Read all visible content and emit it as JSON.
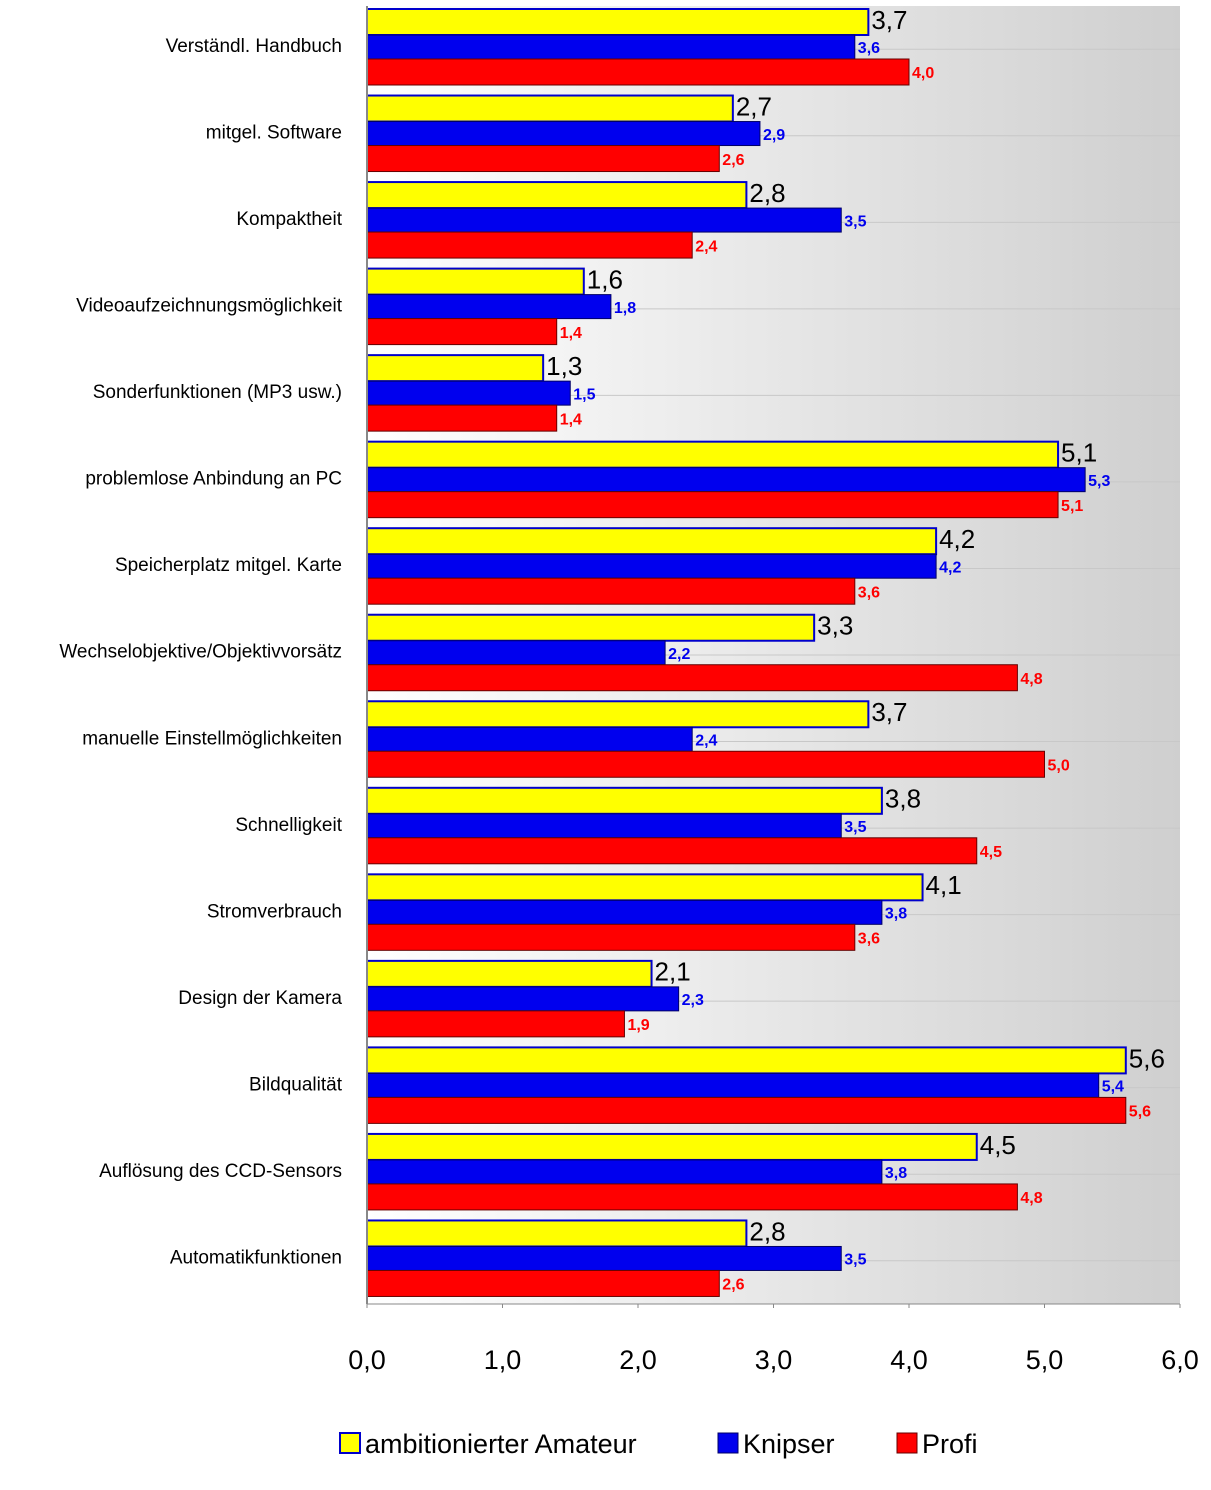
{
  "chart_data": {
    "type": "bar",
    "orientation": "horizontal",
    "categories": [
      "Verständl. Handbuch",
      "mitgel. Software",
      "Kompaktheit",
      "Videoaufzeichnungsmöglichkeit",
      "Sonderfunktionen (MP3 usw.)",
      "problemlose Anbindung an PC",
      "Speicherplatz mitgel. Karte",
      "Wechselobjektive/Objektivvorsätz",
      "manuelle Einstellmöglichkeiten",
      "Schnelligkeit",
      "Stromverbrauch",
      "Design der Kamera",
      "Bildqualität",
      "Auflösung des CCD-Sensors",
      "Automatikfunktionen"
    ],
    "series": [
      {
        "name": "ambitionierter Amateur",
        "color": "#ffff00",
        "values": [
          3.7,
          2.7,
          2.8,
          1.6,
          1.3,
          5.1,
          4.2,
          3.3,
          3.7,
          3.8,
          4.1,
          2.1,
          5.6,
          4.5,
          2.8
        ],
        "value_labels": [
          "3,7",
          "2,7",
          "2,8",
          "1,6",
          "1,3",
          "5,1",
          "4,2",
          "3,3",
          "3,7",
          "3,8",
          "4,1",
          "2,1",
          "5,6",
          "4,5",
          "2,8"
        ]
      },
      {
        "name": "Knipser",
        "color": "#0000ee",
        "values": [
          3.6,
          2.9,
          3.5,
          1.8,
          1.5,
          5.3,
          4.2,
          2.2,
          2.4,
          3.5,
          3.8,
          2.3,
          5.4,
          3.8,
          3.5
        ],
        "value_labels": [
          "3,6",
          "2,9",
          "3,5",
          "1,8",
          "1,5",
          "5,3",
          "4,2",
          "2,2",
          "2,4",
          "3,5",
          "3,8",
          "2,3",
          "5,4",
          "3,8",
          "3,5"
        ]
      },
      {
        "name": "Profi",
        "color": "#ff0000",
        "values": [
          4.0,
          2.6,
          2.4,
          1.4,
          1.4,
          5.1,
          3.6,
          4.8,
          5.0,
          4.5,
          3.6,
          1.9,
          5.6,
          4.8,
          2.6
        ],
        "value_labels": [
          "4,0",
          "2,6",
          "2,4",
          "1,4",
          "1,4",
          "5,1",
          "3,6",
          "4,8",
          "5,0",
          "4,5",
          "3,6",
          "1,9",
          "5,6",
          "4,8",
          "2,6"
        ]
      }
    ],
    "xlim": [
      0,
      6
    ],
    "xticks": [
      {
        "value": 0,
        "label": "0,0"
      },
      {
        "value": 1,
        "label": "1,0"
      },
      {
        "value": 2,
        "label": "2,0"
      },
      {
        "value": 3,
        "label": "3,0"
      },
      {
        "value": 4,
        "label": "4,0"
      },
      {
        "value": 5,
        "label": "5,0"
      },
      {
        "value": 6,
        "label": "6,0"
      }
    ],
    "legend": "bottom"
  }
}
